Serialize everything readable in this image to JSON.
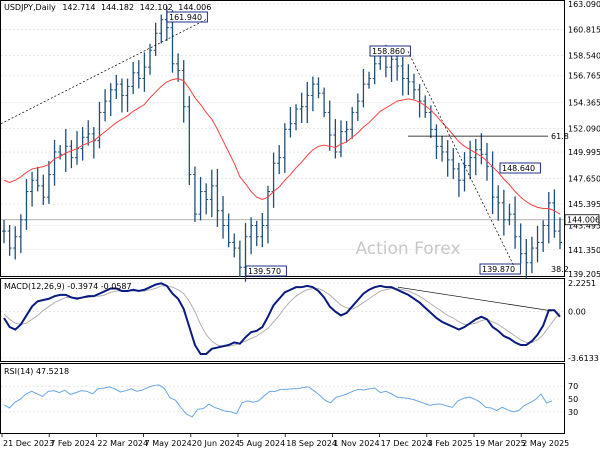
{
  "header": {
    "symbol": "USDJPY,Daily",
    "open": "142.714",
    "high": "144.182",
    "low": "142.102",
    "close": "144.006"
  },
  "watermark": "Action Forex",
  "chart_data": [
    {
      "type": "candlestick",
      "panel": "price",
      "ylim": [
        139.205,
        163.09
      ],
      "yticks": [
        "163.090",
        "160.815",
        "158.540",
        "156.765",
        "154.365",
        "152.090",
        "149.995",
        "147.650",
        "145.395",
        "143.495",
        "141.350",
        "139.205"
      ],
      "current_price": "144.006",
      "x_ticks": [
        "21 Dec 2023",
        "7 Feb 2024",
        "22 Mar 2024",
        "7 May 2024",
        "20 Jun 2024",
        "5 Aug 2024",
        "18 Sep 2024",
        "1 Nov 2024",
        "17 Dec 2024",
        "3 Feb 2025",
        "19 Mar 2025",
        "2 May 2025"
      ],
      "annotations": {
        "high_1": "161.940",
        "low_1": "139.570",
        "high_2": "158.860",
        "low_2": "139.870",
        "high_3": "148.640",
        "fib_618": "61.8",
        "fib_382": "38.2"
      },
      "close_series": [
        143.0,
        141.5,
        142.5,
        144.0,
        146.5,
        147.5,
        147.0,
        146.0,
        148.0,
        150.0,
        149.8,
        150.5,
        149.5,
        150.3,
        151.3,
        151.6,
        151.0,
        153.5,
        154.5,
        155.5,
        156.0,
        155.0,
        155.8,
        157.0,
        156.5,
        157.5,
        159.0,
        160.5,
        161.7,
        161.0,
        157.8,
        157.2,
        154.0,
        148.0,
        144.5,
        146.5,
        145.8,
        147.0,
        144.8,
        143.5,
        142.0,
        141.5,
        139.8,
        142.5,
        143.5,
        142.5,
        143.5,
        146.5,
        149.0,
        149.5,
        152.0,
        152.5,
        153.8,
        154.0,
        155.0,
        156.0,
        155.2,
        153.5,
        151.5,
        150.0,
        151.8,
        152.0,
        153.5,
        154.5,
        156.0,
        156.5,
        157.8,
        158.5,
        157.5,
        158.2,
        157.6,
        156.5,
        156.2,
        155.5,
        154.5,
        153.5,
        152.0,
        150.5,
        150.0,
        149.3,
        148.5,
        147.5,
        148.8,
        149.5,
        150.2,
        149.8,
        148.7,
        146.0,
        145.5,
        144.0,
        144.5,
        142.5,
        141.0,
        140.2,
        141.5,
        142.0,
        143.5,
        145.5,
        143.0,
        142.0
      ],
      "ma_series": [
        147.5,
        147.3,
        147.5,
        147.8,
        148.2,
        148.5,
        148.6,
        148.7,
        148.9,
        149.4,
        149.6,
        149.9,
        150.1,
        150.3,
        150.6,
        150.8,
        151.0,
        151.4,
        151.8,
        152.2,
        152.6,
        152.9,
        153.2,
        153.6,
        153.9,
        154.2,
        154.8,
        155.3,
        155.8,
        156.2,
        156.4,
        156.5,
        156.3,
        155.6,
        154.8,
        154.2,
        153.5,
        152.9,
        152.0,
        151.0,
        150.0,
        149.0,
        147.8,
        147.2,
        146.5,
        146.0,
        145.8,
        146.0,
        146.5,
        146.9,
        147.5,
        148.0,
        148.6,
        149.1,
        149.7,
        150.2,
        150.5,
        150.6,
        150.5,
        150.4,
        150.7,
        150.9,
        151.3,
        151.7,
        152.2,
        152.6,
        153.1,
        153.6,
        153.9,
        154.2,
        154.5,
        154.6,
        154.7,
        154.6,
        154.4,
        154.1,
        153.7,
        153.2,
        152.6,
        152.1,
        151.5,
        150.9,
        150.5,
        150.2,
        149.9,
        149.6,
        149.2,
        148.7,
        148.2,
        147.6,
        147.1,
        146.5,
        146.0,
        145.6,
        145.3,
        145.1,
        145.0,
        145.0,
        144.8,
        144.5
      ]
    },
    {
      "type": "line",
      "panel": "macd",
      "label": "MACD(12,26,9) -0.3974 -0.0587",
      "ylim": [
        -3.6133,
        2.2251
      ],
      "yticks": [
        "2.2251",
        "0.00",
        "-3.6133"
      ],
      "macd_series": [
        -0.5,
        -1.2,
        -1.4,
        -1.0,
        -0.3,
        0.4,
        0.8,
        0.9,
        1.0,
        1.2,
        1.3,
        1.3,
        1.1,
        1.0,
        1.1,
        1.2,
        1.2,
        1.4,
        1.6,
        1.8,
        1.8,
        1.6,
        1.6,
        1.7,
        1.6,
        1.7,
        1.9,
        2.1,
        2.2,
        2.0,
        1.4,
        1.0,
        0.2,
        -1.2,
        -2.6,
        -3.3,
        -3.3,
        -2.9,
        -2.8,
        -2.7,
        -2.6,
        -2.4,
        -2.5,
        -2.0,
        -1.6,
        -1.5,
        -1.2,
        -0.4,
        0.5,
        1.0,
        1.5,
        1.7,
        1.9,
        1.9,
        2.0,
        1.9,
        1.6,
        1.1,
        0.4,
        0.0,
        -0.3,
        -0.1,
        0.4,
        0.9,
        1.4,
        1.7,
        1.9,
        2.0,
        1.9,
        1.9,
        1.7,
        1.5,
        1.3,
        1.0,
        0.7,
        0.3,
        -0.1,
        -0.5,
        -0.8,
        -1.0,
        -1.2,
        -1.4,
        -1.2,
        -0.9,
        -0.6,
        -0.4,
        -0.6,
        -1.2,
        -1.5,
        -1.9,
        -2.1,
        -2.4,
        -2.6,
        -2.6,
        -2.3,
        -1.8,
        -1.1,
        0.1,
        0.1,
        -0.4
      ],
      "signal_series": [
        -0.2,
        -0.6,
        -0.9,
        -1.0,
        -0.9,
        -0.6,
        -0.3,
        0.1,
        0.4,
        0.7,
        0.9,
        1.1,
        1.1,
        1.1,
        1.1,
        1.1,
        1.2,
        1.2,
        1.3,
        1.5,
        1.6,
        1.6,
        1.6,
        1.6,
        1.6,
        1.6,
        1.7,
        1.8,
        2.0,
        2.0,
        1.9,
        1.7,
        1.4,
        0.8,
        0.0,
        -1.0,
        -1.8,
        -2.3,
        -2.6,
        -2.7,
        -2.7,
        -2.6,
        -2.5,
        -2.3,
        -2.1,
        -1.9,
        -1.6,
        -1.3,
        -0.8,
        -0.3,
        0.3,
        0.8,
        1.2,
        1.5,
        1.7,
        1.8,
        1.8,
        1.6,
        1.3,
        0.9,
        0.5,
        0.3,
        0.2,
        0.4,
        0.7,
        1.0,
        1.3,
        1.6,
        1.7,
        1.8,
        1.8,
        1.7,
        1.6,
        1.4,
        1.2,
        0.9,
        0.6,
        0.3,
        0.0,
        -0.3,
        -0.5,
        -0.8,
        -1.0,
        -1.0,
        -0.9,
        -0.7,
        -0.6,
        -0.8,
        -1.0,
        -1.3,
        -1.6,
        -1.9,
        -2.2,
        -2.4,
        -2.4,
        -2.2,
        -1.8,
        -1.2,
        -0.6,
        -0.1
      ]
    },
    {
      "type": "line",
      "panel": "rsi",
      "label": "RSI(14) 47.5218",
      "ylim": [
        0,
        100
      ],
      "yticks": [
        "70",
        "50",
        "30"
      ],
      "levels": [
        70,
        50,
        30
      ],
      "rsi_series": [
        41,
        36,
        45,
        50,
        58,
        62,
        58,
        54,
        62,
        63,
        60,
        64,
        57,
        60,
        63,
        62,
        58,
        66,
        67,
        69,
        66,
        61,
        63,
        66,
        62,
        64,
        68,
        71,
        72,
        66,
        52,
        48,
        36,
        26,
        22,
        34,
        35,
        42,
        37,
        34,
        31,
        30,
        27,
        44,
        47,
        45,
        47,
        55,
        62,
        62,
        65,
        65,
        66,
        66,
        68,
        69,
        63,
        56,
        48,
        44,
        53,
        55,
        58,
        62,
        65,
        64,
        66,
        67,
        60,
        62,
        58,
        53,
        52,
        51,
        49,
        46,
        43,
        40,
        42,
        42,
        39,
        37,
        47,
        51,
        53,
        50,
        45,
        37,
        36,
        32,
        37,
        33,
        30,
        32,
        40,
        44,
        49,
        58,
        44,
        47
      ]
    }
  ],
  "colors": {
    "bars": "#1f4e79",
    "ma": "#ff4040",
    "macd": "#0b1a80",
    "signal": "#b0b0b0",
    "rsi": "#6aa8e6",
    "grid": "#d8d8d8"
  }
}
